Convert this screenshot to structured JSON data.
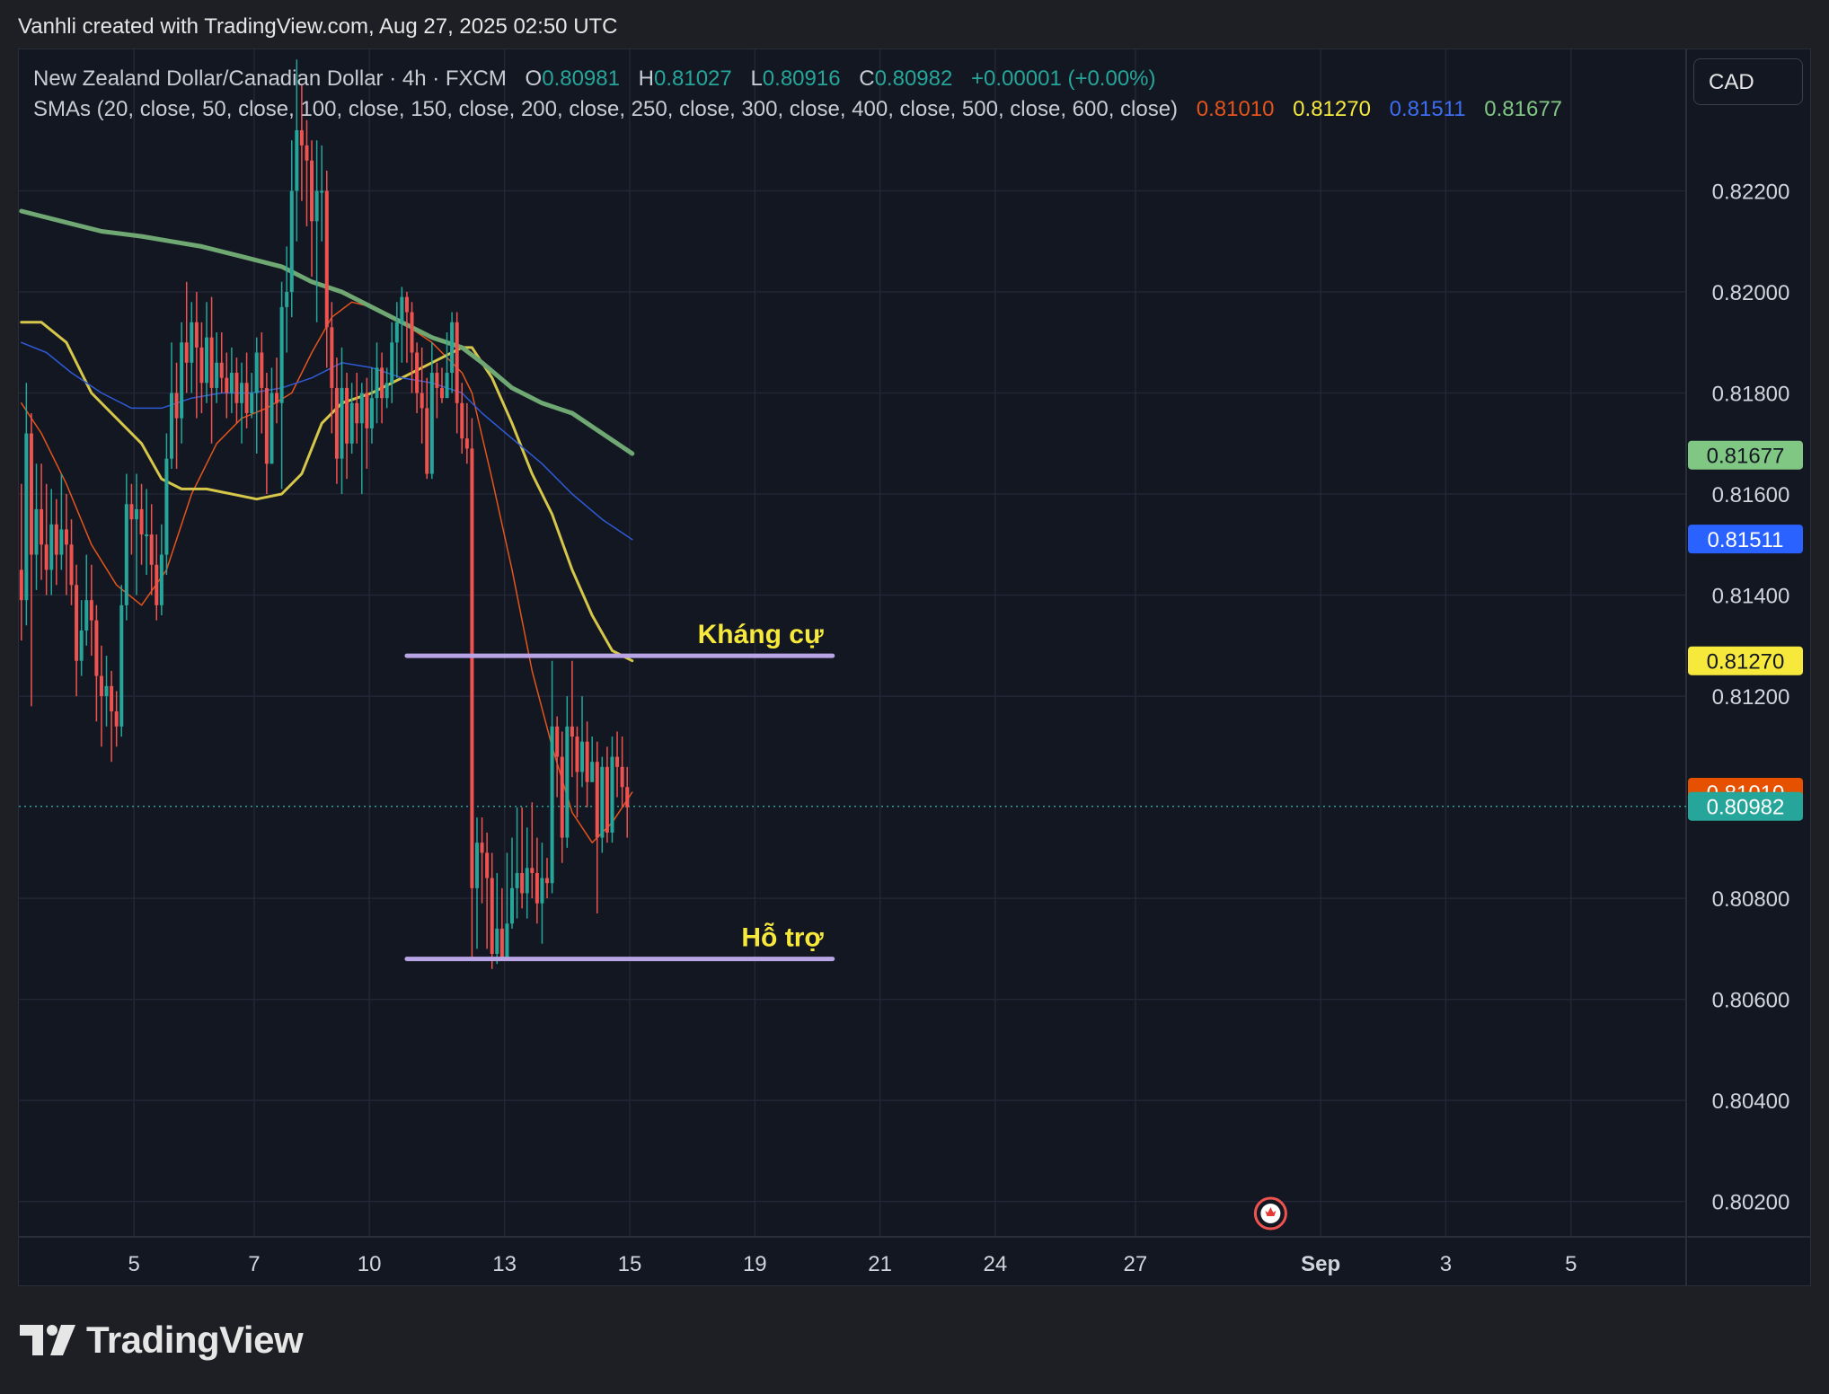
{
  "header": {
    "credit": "Vanhli created with TradingView.com, Aug 27, 2025 02:50 UTC"
  },
  "legend": {
    "symbol": "New Zealand Dollar/Canadian Dollar · 4h · FXCM",
    "o_label": "O",
    "o_value": "0.80981",
    "h_label": "H",
    "h_value": "0.81027",
    "l_label": "L",
    "l_value": "0.80916",
    "c_label": "C",
    "c_value": "0.80982",
    "change": "+0.00001 (+0.00%)",
    "sma_text": "SMAs (20, close, 50, close, 100, close, 150, close, 200, close, 250, close, 300, close, 400, close, 500, close, 600, close)",
    "sma_values": [
      "0.81010",
      "0.81270",
      "0.81511",
      "0.81677"
    ]
  },
  "currency_button": "CAD",
  "footer": {
    "brand": "TradingView"
  },
  "colors": {
    "up": "#26a69a",
    "down": "#ef5350",
    "sma20": "#e4541b",
    "sma50": "#d6c74a",
    "sma100": "#2f5ad6",
    "sma200": "#6fa872",
    "level": "#b9a4e6",
    "annotation": "#f7e93c"
  },
  "chart_data": {
    "type": "candlestick",
    "timeframe": "4h",
    "ylim": [
      0.8013,
      0.8248
    ],
    "x_ticks": [
      {
        "label": "5",
        "pos": 23
      },
      {
        "label": "7",
        "pos": 47
      },
      {
        "label": "10",
        "pos": 70
      },
      {
        "label": "13",
        "pos": 97
      },
      {
        "label": "15",
        "pos": 122
      },
      {
        "label": "19",
        "pos": 147
      },
      {
        "label": "21",
        "pos": 172
      },
      {
        "label": "24",
        "pos": 195
      },
      {
        "label": "27",
        "pos": 223
      },
      {
        "label": "Sep",
        "pos": 260
      },
      {
        "label": "3",
        "pos": 285
      },
      {
        "label": "5",
        "pos": 310
      }
    ],
    "x_range": [
      0,
      333
    ],
    "y_ticks": [
      "0.80200",
      "0.80400",
      "0.80600",
      "0.80800",
      "0.81200",
      "0.81400",
      "0.81600",
      "0.81800",
      "0.82000",
      "0.82200"
    ],
    "candles": [
      [
        0.8145,
        0.8139,
        0.8162,
        0.8131
      ],
      [
        0.8139,
        0.8172,
        0.8182,
        0.8134
      ],
      [
        0.8172,
        0.8148,
        0.8176,
        0.8118
      ],
      [
        0.8148,
        0.8157,
        0.8166,
        0.8141
      ],
      [
        0.8157,
        0.815,
        0.8166,
        0.8143
      ],
      [
        0.815,
        0.8145,
        0.8162,
        0.814
      ],
      [
        0.8145,
        0.8154,
        0.8161,
        0.814
      ],
      [
        0.8154,
        0.8148,
        0.8159,
        0.8142
      ],
      [
        0.8148,
        0.8153,
        0.8164,
        0.8145
      ],
      [
        0.8153,
        0.815,
        0.816,
        0.814
      ],
      [
        0.815,
        0.8142,
        0.8155,
        0.8138
      ],
      [
        0.8142,
        0.8127,
        0.8146,
        0.812
      ],
      [
        0.8127,
        0.8133,
        0.8139,
        0.8124
      ],
      [
        0.8133,
        0.8139,
        0.8148,
        0.813
      ],
      [
        0.8139,
        0.8135,
        0.8146,
        0.8128
      ],
      [
        0.8135,
        0.8124,
        0.8138,
        0.8115
      ],
      [
        0.8124,
        0.812,
        0.813,
        0.811
      ],
      [
        0.812,
        0.8122,
        0.8128,
        0.8114
      ],
      [
        0.8122,
        0.8117,
        0.8125,
        0.8107
      ],
      [
        0.8117,
        0.8114,
        0.8121,
        0.811
      ],
      [
        0.8114,
        0.8138,
        0.8142,
        0.8112
      ],
      [
        0.8138,
        0.8158,
        0.8164,
        0.8135
      ],
      [
        0.8158,
        0.8155,
        0.8162,
        0.8148
      ],
      [
        0.8155,
        0.8157,
        0.8164,
        0.814
      ],
      [
        0.8157,
        0.8152,
        0.8162,
        0.8146
      ],
      [
        0.8152,
        0.8152,
        0.8161,
        0.8144
      ],
      [
        0.8152,
        0.8146,
        0.8158,
        0.814
      ],
      [
        0.8146,
        0.8138,
        0.8152,
        0.8135
      ],
      [
        0.8138,
        0.8148,
        0.8154,
        0.8136
      ],
      [
        0.8148,
        0.8167,
        0.8172,
        0.8144
      ],
      [
        0.8167,
        0.818,
        0.819,
        0.8165
      ],
      [
        0.818,
        0.8175,
        0.8186,
        0.8165
      ],
      [
        0.8175,
        0.819,
        0.8194,
        0.817
      ],
      [
        0.819,
        0.8186,
        0.8202,
        0.818
      ],
      [
        0.8186,
        0.8194,
        0.8198,
        0.818
      ],
      [
        0.8194,
        0.8189,
        0.82,
        0.8175
      ],
      [
        0.8189,
        0.8182,
        0.8194,
        0.8176
      ],
      [
        0.8182,
        0.8191,
        0.8198,
        0.8178
      ],
      [
        0.8191,
        0.8181,
        0.8199,
        0.817
      ],
      [
        0.8181,
        0.8186,
        0.8192,
        0.8178
      ],
      [
        0.8186,
        0.8183,
        0.8192,
        0.818
      ],
      [
        0.8183,
        0.818,
        0.8188,
        0.8175
      ],
      [
        0.818,
        0.8184,
        0.8189,
        0.8176
      ],
      [
        0.8184,
        0.8178,
        0.8187,
        0.8174
      ],
      [
        0.8178,
        0.8182,
        0.8186,
        0.817
      ],
      [
        0.8182,
        0.8176,
        0.8188,
        0.8173
      ],
      [
        0.8176,
        0.818,
        0.8184,
        0.8175
      ],
      [
        0.818,
        0.8188,
        0.8191,
        0.8168
      ],
      [
        0.8188,
        0.8181,
        0.8192,
        0.8172
      ],
      [
        0.8181,
        0.8166,
        0.8184,
        0.816
      ],
      [
        0.8166,
        0.818,
        0.8185,
        0.8166
      ],
      [
        0.818,
        0.8178,
        0.8187,
        0.8174
      ],
      [
        0.8178,
        0.8197,
        0.8202,
        0.8161
      ],
      [
        0.8197,
        0.82,
        0.8209,
        0.8188
      ],
      [
        0.82,
        0.822,
        0.823,
        0.8195
      ],
      [
        0.822,
        0.8232,
        0.8246,
        0.821
      ],
      [
        0.8232,
        0.8229,
        0.8241,
        0.8218
      ],
      [
        0.8229,
        0.8226,
        0.8234,
        0.8213
      ],
      [
        0.8226,
        0.8214,
        0.823,
        0.8203
      ],
      [
        0.8214,
        0.822,
        0.823,
        0.8194
      ],
      [
        0.822,
        0.822,
        0.8229,
        0.821
      ],
      [
        0.822,
        0.8193,
        0.8224,
        0.8185
      ],
      [
        0.8193,
        0.8181,
        0.8198,
        0.8172
      ],
      [
        0.8181,
        0.8167,
        0.8187,
        0.8162
      ],
      [
        0.8167,
        0.8181,
        0.8189,
        0.816
      ],
      [
        0.8181,
        0.817,
        0.8184,
        0.8163
      ],
      [
        0.817,
        0.8178,
        0.8182,
        0.8168
      ],
      [
        0.8178,
        0.8174,
        0.8184,
        0.817
      ],
      [
        0.8174,
        0.818,
        0.8182,
        0.816
      ],
      [
        0.818,
        0.8173,
        0.8183,
        0.8165
      ],
      [
        0.8173,
        0.8179,
        0.8185,
        0.817
      ],
      [
        0.8179,
        0.8185,
        0.819,
        0.8174
      ],
      [
        0.8185,
        0.8179,
        0.8188,
        0.8174
      ],
      [
        0.8179,
        0.8182,
        0.8185,
        0.8177
      ],
      [
        0.8182,
        0.819,
        0.8194,
        0.8178
      ],
      [
        0.819,
        0.8194,
        0.8198,
        0.8183
      ],
      [
        0.8194,
        0.8199,
        0.8201,
        0.8186
      ],
      [
        0.8199,
        0.8196,
        0.82,
        0.8186
      ],
      [
        0.8196,
        0.8188,
        0.8198,
        0.818
      ],
      [
        0.8188,
        0.818,
        0.819,
        0.8176
      ],
      [
        0.818,
        0.8177,
        0.8189,
        0.817
      ],
      [
        0.8177,
        0.8164,
        0.8183,
        0.8163
      ],
      [
        0.8164,
        0.8184,
        0.819,
        0.8163
      ],
      [
        0.8184,
        0.8181,
        0.8186,
        0.8175
      ],
      [
        0.8181,
        0.8179,
        0.8185,
        0.8178
      ],
      [
        0.8179,
        0.8184,
        0.8192,
        0.818
      ],
      [
        0.8184,
        0.8194,
        0.8196,
        0.818
      ],
      [
        0.8194,
        0.8178,
        0.8196,
        0.8172
      ],
      [
        0.8178,
        0.8171,
        0.8182,
        0.8168
      ],
      [
        0.8171,
        0.8169,
        0.8178,
        0.8166
      ],
      [
        0.8169,
        0.8082,
        0.8175,
        0.8068
      ],
      [
        0.8082,
        0.8091,
        0.8096,
        0.807
      ],
      [
        0.8091,
        0.8089,
        0.8096,
        0.8079
      ],
      [
        0.8089,
        0.8084,
        0.8093,
        0.807
      ],
      [
        0.8084,
        0.8069,
        0.8089,
        0.8066
      ],
      [
        0.8069,
        0.8074,
        0.8085,
        0.8067
      ],
      [
        0.8074,
        0.8068,
        0.8082,
        0.8068
      ],
      [
        0.8068,
        0.8075,
        0.8089,
        0.807
      ],
      [
        0.8075,
        0.8082,
        0.8092,
        0.8074
      ],
      [
        0.8082,
        0.8085,
        0.8098,
        0.8076
      ],
      [
        0.8085,
        0.8081,
        0.8098,
        0.8078
      ],
      [
        0.8081,
        0.8086,
        0.8094,
        0.8076
      ],
      [
        0.8086,
        0.8085,
        0.8099,
        0.808
      ],
      [
        0.8085,
        0.8079,
        0.8092,
        0.8075
      ],
      [
        0.8079,
        0.8084,
        0.8091,
        0.8071
      ],
      [
        0.8084,
        0.8083,
        0.8088,
        0.808
      ],
      [
        0.8083,
        0.8114,
        0.8127,
        0.8081
      ],
      [
        0.8114,
        0.8108,
        0.8116,
        0.81
      ],
      [
        0.8108,
        0.8092,
        0.8113,
        0.8087
      ],
      [
        0.8092,
        0.8114,
        0.812,
        0.809
      ],
      [
        0.8114,
        0.8112,
        0.8127,
        0.8104
      ],
      [
        0.8112,
        0.8105,
        0.8114,
        0.8096
      ],
      [
        0.8105,
        0.8111,
        0.812,
        0.8102
      ],
      [
        0.8111,
        0.8103,
        0.8115,
        0.8098
      ],
      [
        0.8103,
        0.8107,
        0.8112,
        0.8103
      ],
      [
        0.8107,
        0.8092,
        0.8111,
        0.8077
      ],
      [
        0.8092,
        0.8106,
        0.8108,
        0.8089
      ],
      [
        0.8106,
        0.8093,
        0.811,
        0.8091
      ],
      [
        0.8093,
        0.8108,
        0.8112,
        0.8091
      ],
      [
        0.8108,
        0.8106,
        0.8113,
        0.81
      ],
      [
        0.8106,
        0.8102,
        0.8112,
        0.8098
      ],
      [
        0.8102,
        0.8098,
        0.8106,
        0.8092
      ]
    ],
    "smas": [
      {
        "color": "sma20",
        "width": 1.5,
        "points": [
          [
            0,
            0.8178
          ],
          [
            4,
            0.8172
          ],
          [
            9,
            0.8162
          ],
          [
            14,
            0.815
          ],
          [
            19,
            0.8142
          ],
          [
            24,
            0.8138
          ],
          [
            29,
            0.8145
          ],
          [
            34,
            0.816
          ],
          [
            39,
            0.817
          ],
          [
            44,
            0.8175
          ],
          [
            49,
            0.8177
          ],
          [
            54,
            0.818
          ],
          [
            58,
            0.8188
          ],
          [
            62,
            0.8195
          ],
          [
            66,
            0.8198
          ],
          [
            70,
            0.8197
          ],
          [
            76,
            0.8194
          ],
          [
            82,
            0.819
          ],
          [
            88,
            0.8184
          ],
          [
            90,
            0.818
          ],
          [
            94,
            0.8163
          ],
          [
            98,
            0.8145
          ],
          [
            102,
            0.8125
          ],
          [
            106,
            0.811
          ],
          [
            110,
            0.8097
          ],
          [
            114,
            0.8091
          ],
          [
            118,
            0.8095
          ],
          [
            122,
            0.8101
          ]
        ]
      },
      {
        "color": "sma50",
        "width": 3,
        "points": [
          [
            0,
            0.8194
          ],
          [
            4,
            0.8194
          ],
          [
            9,
            0.819
          ],
          [
            14,
            0.818
          ],
          [
            19,
            0.8175
          ],
          [
            24,
            0.817
          ],
          [
            28,
            0.8163
          ],
          [
            32,
            0.8161
          ],
          [
            37,
            0.8161
          ],
          [
            42,
            0.816
          ],
          [
            47,
            0.8159
          ],
          [
            52,
            0.816
          ],
          [
            56,
            0.8164
          ],
          [
            60,
            0.8174
          ],
          [
            64,
            0.8178
          ],
          [
            70,
            0.818
          ],
          [
            76,
            0.8183
          ],
          [
            82,
            0.8186
          ],
          [
            88,
            0.8189
          ],
          [
            90,
            0.8189
          ],
          [
            94,
            0.8183
          ],
          [
            98,
            0.8174
          ],
          [
            102,
            0.8164
          ],
          [
            106,
            0.8156
          ],
          [
            110,
            0.8145
          ],
          [
            114,
            0.8136
          ],
          [
            118,
            0.8129
          ],
          [
            122,
            0.8127
          ]
        ]
      },
      {
        "color": "sma100",
        "width": 1.5,
        "points": [
          [
            0,
            0.819
          ],
          [
            5,
            0.8188
          ],
          [
            10,
            0.8184
          ],
          [
            16,
            0.818
          ],
          [
            22,
            0.8177
          ],
          [
            28,
            0.8177
          ],
          [
            34,
            0.8179
          ],
          [
            40,
            0.818
          ],
          [
            46,
            0.818
          ],
          [
            52,
            0.8181
          ],
          [
            58,
            0.8183
          ],
          [
            64,
            0.8186
          ],
          [
            70,
            0.8185
          ],
          [
            76,
            0.8183
          ],
          [
            82,
            0.8182
          ],
          [
            88,
            0.818
          ],
          [
            92,
            0.8176
          ],
          [
            98,
            0.8171
          ],
          [
            104,
            0.8166
          ],
          [
            110,
            0.816
          ],
          [
            116,
            0.8155
          ],
          [
            122,
            0.8151
          ]
        ]
      },
      {
        "color": "sma200",
        "width": 5,
        "points": [
          [
            0,
            0.8216
          ],
          [
            8,
            0.8214
          ],
          [
            16,
            0.8212
          ],
          [
            24,
            0.8211
          ],
          [
            30,
            0.821
          ],
          [
            36,
            0.8209
          ],
          [
            44,
            0.8207
          ],
          [
            52,
            0.8205
          ],
          [
            58,
            0.8202
          ],
          [
            64,
            0.82
          ],
          [
            70,
            0.8197
          ],
          [
            76,
            0.8194
          ],
          [
            82,
            0.8191
          ],
          [
            88,
            0.8189
          ],
          [
            92,
            0.8186
          ],
          [
            98,
            0.8181
          ],
          [
            104,
            0.8178
          ],
          [
            110,
            0.8176
          ],
          [
            116,
            0.8172
          ],
          [
            122,
            0.8168
          ]
        ]
      }
    ],
    "levels": [
      {
        "label": "Kháng cự",
        "value": 0.8128,
        "x_start": 77.5,
        "x_end": 162.5
      },
      {
        "label": "Hỗ trợ",
        "value": 0.8068,
        "x_start": 77.5,
        "x_end": 162.5
      }
    ],
    "current_price": 0.80982,
    "price_tags": [
      {
        "label": "0.81677",
        "value": 0.81677,
        "bg": "#81c784",
        "fg": "#131722"
      },
      {
        "label": "0.81511",
        "value": 0.81511,
        "bg": "#2962ff",
        "fg": "#ffffff"
      },
      {
        "label": "0.81270",
        "value": 0.8127,
        "bg": "#f7e93c",
        "fg": "#131722"
      },
      {
        "label": "0.81010",
        "value": 0.8101,
        "bg": "#e65100",
        "fg": "#ffffff"
      },
      {
        "label": "0.80982",
        "value": 0.80982,
        "bg": "#26a69a",
        "fg": "#ffffff"
      }
    ],
    "event_marker": {
      "pos": 250,
      "name": "canada-flag-event"
    }
  }
}
